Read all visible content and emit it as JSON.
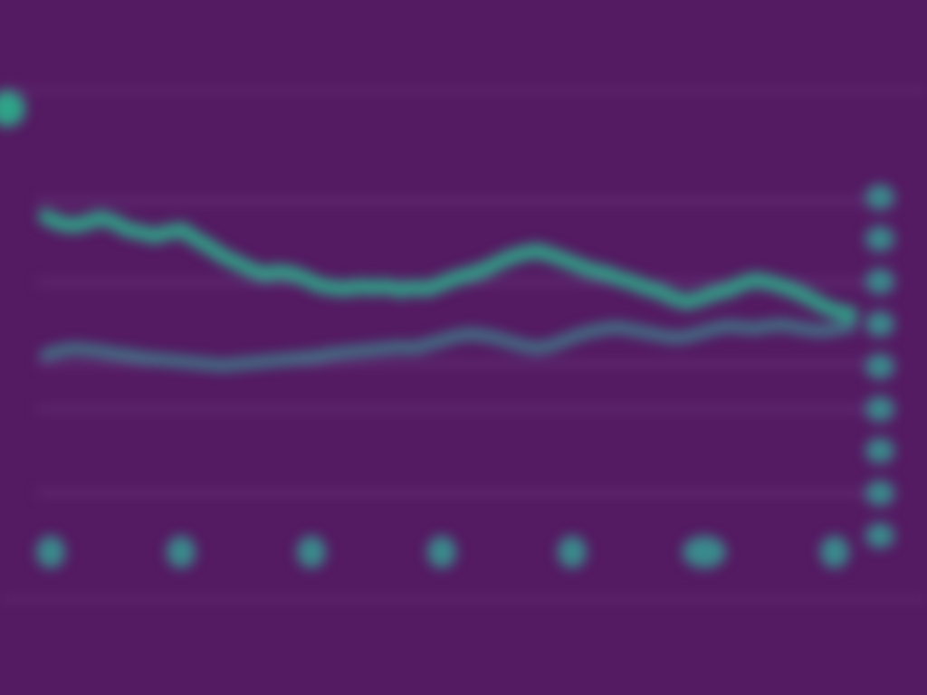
{
  "colors": {
    "background": "#541a62",
    "accent": "#2fa488",
    "grid": "#6a3a7e",
    "badge": "#3a8a8c"
  },
  "header": {
    "icon": "circle-icon",
    "title": "",
    "subtitle": ""
  },
  "chart_data": {
    "type": "line",
    "title": "",
    "xlabel": "",
    "ylabel": "",
    "grid": true,
    "legend": "none",
    "x_count": 60,
    "series": [
      {
        "name": "",
        "color": "#2fa488",
        "values": [
          22,
          21.5,
          21.3,
          21.5,
          21.9,
          21.6,
          21.0,
          20.8,
          20.5,
          20.8,
          21.0,
          20.3,
          19.7,
          19.0,
          18.5,
          18.0,
          17.6,
          17.8,
          17.7,
          17.3,
          16.8,
          16.6,
          16.5,
          16.7,
          16.6,
          16.7,
          16.4,
          16.6,
          16.5,
          16.9,
          17.3,
          17.6,
          17.9,
          18.4,
          18.9,
          19.2,
          19.4,
          19.1,
          18.7,
          18.3,
          17.9,
          17.7,
          17.3,
          17.0,
          16.6,
          16.3,
          15.8,
          15.5,
          15.8,
          16.2,
          16.4,
          16.9,
          17.2,
          17.0,
          16.7,
          16.3,
          15.8,
          15.2,
          14.8,
          14.6
        ]
      },
      {
        "name": "",
        "color": "#3f7e8a",
        "values": [
          11.5,
          11.8,
          12.0,
          11.9,
          11.8,
          11.6,
          11.5,
          11.3,
          11.2,
          11.1,
          11.0,
          10.9,
          10.8,
          10.7,
          10.8,
          10.9,
          11.0,
          11.1,
          11.2,
          11.3,
          11.4,
          11.6,
          11.7,
          11.8,
          11.9,
          12.0,
          12.1,
          12.0,
          12.3,
          12.6,
          12.9,
          13.1,
          13.0,
          12.8,
          12.5,
          12.2,
          12.0,
          12.2,
          12.6,
          13.0,
          13.3,
          13.5,
          13.6,
          13.4,
          13.2,
          13.0,
          12.8,
          12.9,
          13.2,
          13.5,
          13.7,
          13.6,
          13.5,
          13.7,
          13.8,
          13.6,
          13.4,
          13.3,
          13.5,
          13.7
        ]
      }
    ],
    "y_ticks": [
      "",
      "",
      "",
      "",
      "",
      "",
      "",
      ""
    ],
    "x_ticks": [
      "",
      "",
      "",
      "",
      "",
      "",
      ""
    ],
    "footer_label": ""
  }
}
